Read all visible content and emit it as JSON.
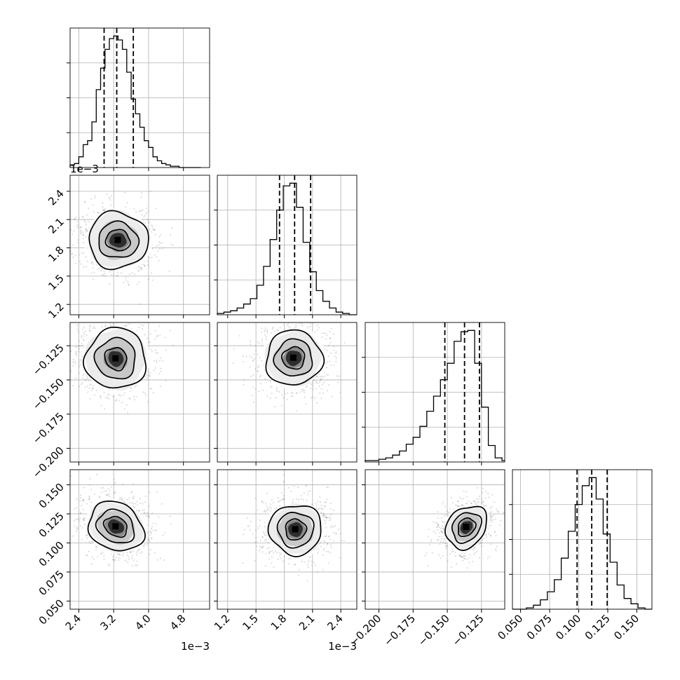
{
  "chart_data": {
    "type": "corner",
    "grid": true,
    "parameters": [
      {
        "index": 0,
        "axis_range": [
          0.0022,
          0.0054
        ],
        "scale_label": "1e−3",
        "tick_values": [
          0.0024,
          0.0032,
          0.004,
          0.0048
        ],
        "tick_labels": [
          "2.4",
          "3.2",
          "4.0",
          "4.8"
        ],
        "quantiles": [
          0.00298,
          0.00327,
          0.00365
        ],
        "histogram": {
          "bin_edges": [
            0.0022,
            0.0023,
            0.0024,
            0.0025,
            0.0026,
            0.0027,
            0.0028,
            0.0029,
            0.003,
            0.0031,
            0.0032,
            0.0033,
            0.0034,
            0.0035,
            0.0036,
            0.0037,
            0.0038,
            0.0039,
            0.004,
            0.0041,
            0.0042,
            0.0043,
            0.0044,
            0.0045,
            0.0046,
            0.0047,
            0.0048,
            0.0049,
            0.005,
            0.0051,
            0.0052
          ],
          "counts": [
            2,
            3,
            8,
            17,
            20,
            34,
            58,
            74,
            88,
            96,
            98,
            95,
            88,
            71,
            51,
            40,
            30,
            20,
            15,
            8,
            5,
            3,
            2,
            1,
            1,
            0,
            0,
            0,
            0,
            0
          ]
        }
      },
      {
        "index": 1,
        "axis_range": [
          0.00109,
          0.00257
        ],
        "scale_label": "1e−3",
        "tick_values": [
          0.0012,
          0.0015,
          0.0018,
          0.0021,
          0.0024
        ],
        "tick_labels": [
          "1.2",
          "1.5",
          "1.8",
          "2.1",
          "2.4"
        ],
        "quantiles": [
          0.00175,
          0.00191,
          0.00208
        ],
        "histogram": {
          "bin_edges": [
            0.00109,
            0.00116,
            0.00123,
            0.0013,
            0.00137,
            0.00144,
            0.00151,
            0.00158,
            0.00165,
            0.00172,
            0.00179,
            0.00186,
            0.00193,
            0.002,
            0.00207,
            0.00214,
            0.00221,
            0.00228,
            0.00235,
            0.00242,
            0.00249,
            0.00257
          ],
          "counts": [
            1,
            2,
            3,
            5,
            8,
            12,
            22,
            36,
            56,
            78,
            96,
            98,
            80,
            54,
            32,
            18,
            10,
            5,
            2,
            1,
            0
          ]
        }
      },
      {
        "index": 2,
        "axis_range": [
          -0.21,
          -0.108
        ],
        "scale_label": "",
        "tick_values": [
          -0.2,
          -0.175,
          -0.15,
          -0.125
        ],
        "tick_labels": [
          "−0.200",
          "−0.175",
          "−0.150",
          "−0.125"
        ],
        "quantiles": [
          -0.1518,
          -0.1374,
          -0.1265
        ],
        "histogram": {
          "bin_edges": [
            -0.21,
            -0.205,
            -0.2,
            -0.195,
            -0.19,
            -0.185,
            -0.18,
            -0.175,
            -0.17,
            -0.165,
            -0.16,
            -0.155,
            -0.15,
            -0.145,
            -0.14,
            -0.135,
            -0.13,
            -0.125,
            -0.12,
            -0.115,
            -0.11,
            -0.108
          ],
          "counts": [
            1,
            1,
            2,
            3,
            5,
            8,
            13,
            18,
            26,
            37,
            48,
            60,
            72,
            88,
            95,
            96,
            72,
            40,
            12,
            3,
            1
          ]
        }
      },
      {
        "index": 3,
        "axis_range": [
          0.043,
          0.163
        ],
        "scale_label": "",
        "tick_values": [
          0.05,
          0.075,
          0.1,
          0.125,
          0.15
        ],
        "tick_labels": [
          "0.050",
          "0.075",
          "0.100",
          "0.125",
          "0.150"
        ],
        "quantiles": [
          0.0986,
          0.1112,
          0.1245
        ],
        "histogram": {
          "bin_edges": [
            0.043,
            0.049,
            0.055,
            0.061,
            0.067,
            0.073,
            0.079,
            0.085,
            0.091,
            0.097,
            0.103,
            0.109,
            0.115,
            0.121,
            0.127,
            0.133,
            0.139,
            0.145,
            0.151,
            0.157,
            0.163
          ],
          "counts": [
            0,
            0,
            1,
            3,
            7,
            13,
            22,
            38,
            58,
            78,
            92,
            98,
            82,
            56,
            35,
            18,
            8,
            4,
            1,
            0
          ]
        }
      }
    ],
    "joint_panels": [
      {
        "x": 0,
        "y": 1,
        "peak": [
          0.0033,
          0.00188
        ],
        "ellipses": [
          [
            0.00028,
            0.00011,
            -12
          ],
          [
            0.00046,
            0.00019,
            -10
          ],
          [
            0.00068,
            0.0003,
            -8
          ]
        ]
      },
      {
        "x": 0,
        "y": 2,
        "peak": [
          0.00325,
          -0.1345
        ],
        "ellipses": [
          [
            0.00024,
            0.0085,
            35
          ],
          [
            0.00046,
            0.015,
            35
          ],
          [
            0.0007,
            0.022,
            35
          ]
        ]
      },
      {
        "x": 1,
        "y": 2,
        "peak": [
          0.0019,
          -0.134
        ],
        "ellipses": [
          [
            0.00012,
            0.008,
            10
          ],
          [
            0.0002,
            0.0135,
            15
          ],
          [
            0.0003,
            0.02,
            20
          ]
        ]
      },
      {
        "x": 0,
        "y": 3,
        "peak": [
          0.00325,
          0.114
        ],
        "ellipses": [
          [
            0.00028,
            0.008,
            -30
          ],
          [
            0.00045,
            0.0135,
            -30
          ],
          [
            0.00066,
            0.02,
            -30
          ]
        ]
      },
      {
        "x": 1,
        "y": 3,
        "peak": [
          0.00192,
          0.1115
        ],
        "ellipses": [
          [
            0.00011,
            0.009,
            0
          ],
          [
            0.00019,
            0.015,
            0
          ],
          [
            0.00028,
            0.0215,
            0
          ]
        ]
      },
      {
        "x": 2,
        "y": 3,
        "peak": [
          -0.136,
          0.1135
        ],
        "ellipses": [
          [
            0.0058,
            0.0085,
            -40
          ],
          [
            0.0095,
            0.014,
            -40
          ],
          [
            0.0135,
            0.02,
            -40
          ]
        ]
      }
    ]
  }
}
